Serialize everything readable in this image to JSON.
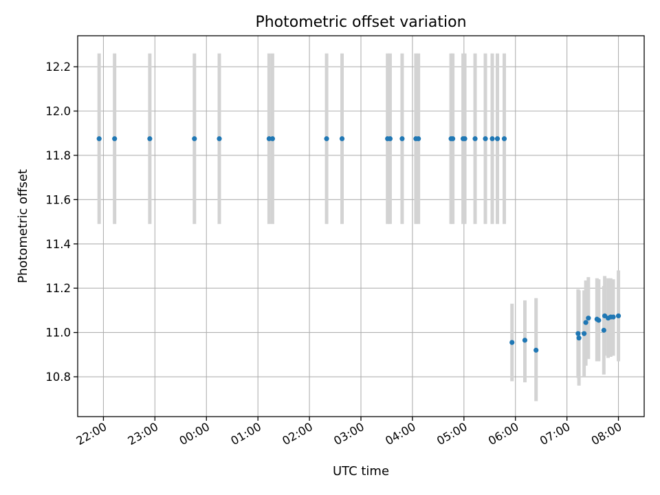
{
  "chart_data": {
    "type": "scatter",
    "title": "Photometric offset variation",
    "xlabel": "UTC time",
    "ylabel": "Photometric offset",
    "grid": true,
    "x_is_time": true,
    "xlim": [
      "21:30",
      "08:30"
    ],
    "ylim": [
      10.62,
      12.34
    ],
    "x_ticks": [
      "22:00",
      "23:00",
      "00:00",
      "01:00",
      "02:00",
      "03:00",
      "04:00",
      "05:00",
      "06:00",
      "07:00",
      "08:00"
    ],
    "y_ticks": [
      10.8,
      11.0,
      11.2,
      11.4,
      11.6,
      11.8,
      12.0,
      12.2
    ],
    "marker_color": "#1f77b4",
    "errorbar_color": "#d3d3d3",
    "points": [
      {
        "t": "21:55",
        "y": 11.875,
        "lo": 11.49,
        "hi": 12.26
      },
      {
        "t": "22:13",
        "y": 11.875,
        "lo": 11.49,
        "hi": 12.26
      },
      {
        "t": "22:54",
        "y": 11.875,
        "lo": 11.49,
        "hi": 12.26
      },
      {
        "t": "23:46",
        "y": 11.875,
        "lo": 11.49,
        "hi": 12.26
      },
      {
        "t": "00:15",
        "y": 11.875,
        "lo": 11.49,
        "hi": 12.26
      },
      {
        "t": "01:13",
        "y": 11.875,
        "lo": 11.49,
        "hi": 12.26
      },
      {
        "t": "01:17",
        "y": 11.875,
        "lo": 11.49,
        "hi": 12.26
      },
      {
        "t": "02:20",
        "y": 11.875,
        "lo": 11.49,
        "hi": 12.26
      },
      {
        "t": "02:38",
        "y": 11.875,
        "lo": 11.49,
        "hi": 12.26
      },
      {
        "t": "03:31",
        "y": 11.875,
        "lo": 11.49,
        "hi": 12.26
      },
      {
        "t": "03:34",
        "y": 11.875,
        "lo": 11.49,
        "hi": 12.26
      },
      {
        "t": "03:48",
        "y": 11.875,
        "lo": 11.49,
        "hi": 12.26
      },
      {
        "t": "04:04",
        "y": 11.875,
        "lo": 11.49,
        "hi": 12.26
      },
      {
        "t": "04:07",
        "y": 11.875,
        "lo": 11.49,
        "hi": 12.26
      },
      {
        "t": "04:45",
        "y": 11.875,
        "lo": 11.49,
        "hi": 12.26
      },
      {
        "t": "04:47",
        "y": 11.875,
        "lo": 11.49,
        "hi": 12.26
      },
      {
        "t": "04:59",
        "y": 11.875,
        "lo": 11.49,
        "hi": 12.26
      },
      {
        "t": "05:01",
        "y": 11.875,
        "lo": 11.49,
        "hi": 12.26
      },
      {
        "t": "05:13",
        "y": 11.875,
        "lo": 11.49,
        "hi": 12.26
      },
      {
        "t": "05:25",
        "y": 11.875,
        "lo": 11.49,
        "hi": 12.26
      },
      {
        "t": "05:33",
        "y": 11.875,
        "lo": 11.49,
        "hi": 12.26
      },
      {
        "t": "05:39",
        "y": 11.875,
        "lo": 11.49,
        "hi": 12.26
      },
      {
        "t": "05:47",
        "y": 11.875,
        "lo": 11.49,
        "hi": 12.26
      },
      {
        "t": "05:56",
        "y": 10.955,
        "lo": 10.78,
        "hi": 11.13
      },
      {
        "t": "06:11",
        "y": 10.965,
        "lo": 10.775,
        "hi": 11.145
      },
      {
        "t": "06:24",
        "y": 10.92,
        "lo": 10.69,
        "hi": 11.155
      },
      {
        "t": "07:13",
        "y": 10.995,
        "lo": 10.795,
        "hi": 11.195
      },
      {
        "t": "07:14",
        "y": 10.975,
        "lo": 10.76,
        "hi": 11.19
      },
      {
        "t": "07:20",
        "y": 10.995,
        "lo": 10.8,
        "hi": 11.19
      },
      {
        "t": "07:22",
        "y": 11.045,
        "lo": 10.85,
        "hi": 11.235
      },
      {
        "t": "07:25",
        "y": 11.065,
        "lo": 10.88,
        "hi": 11.25
      },
      {
        "t": "07:35",
        "y": 11.06,
        "lo": 10.87,
        "hi": 11.245
      },
      {
        "t": "07:37",
        "y": 11.055,
        "lo": 10.87,
        "hi": 11.24
      },
      {
        "t": "07:43",
        "y": 11.01,
        "lo": 10.81,
        "hi": 11.21
      },
      {
        "t": "07:44",
        "y": 11.075,
        "lo": 10.895,
        "hi": 11.255
      },
      {
        "t": "07:48",
        "y": 11.065,
        "lo": 10.885,
        "hi": 11.245
      },
      {
        "t": "07:51",
        "y": 11.07,
        "lo": 10.89,
        "hi": 11.245
      },
      {
        "t": "07:54",
        "y": 11.07,
        "lo": 10.895,
        "hi": 11.24
      },
      {
        "t": "08:00",
        "y": 11.075,
        "lo": 10.87,
        "hi": 11.28
      }
    ]
  }
}
